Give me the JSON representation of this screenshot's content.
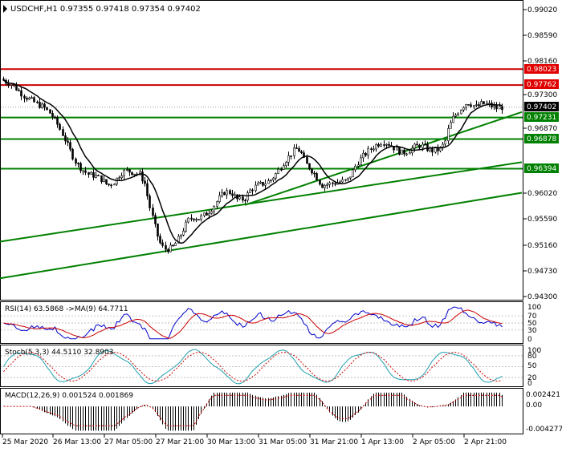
{
  "symbol_header": "USDCHF,H1  0.97355 0.97418 0.97354 0.97402",
  "colors": {
    "candle": "#000000",
    "ma_line": "#000000",
    "support_lines": "#008000",
    "resistance_lines": "#cc0000",
    "price_tag_red_bg": "#e00000",
    "price_tag_green_bg": "#008000",
    "price_tag_current_bg": "#000000",
    "rsi_line": "#0000cc",
    "rsi_ma_line": "#cc0000",
    "stoch_main": "#20a0b0",
    "stoch_signal": "#cc0000",
    "macd_hist": "#000000",
    "macd_signal": "#cc0000"
  },
  "price_axis": {
    "ticks": [
      "0.99020",
      "0.98590",
      "0.98160",
      "0.97300",
      "0.96870",
      "0.96020",
      "0.95590",
      "0.95160",
      "0.94730",
      "0.94300"
    ]
  },
  "price_tags": {
    "r1": "0.98023",
    "r2": "0.97762",
    "current": "0.97402",
    "s1": "0.97231",
    "s2": "0.96878",
    "s3": "0.96394"
  },
  "rsi_panel": {
    "header": "RSI(14) 63.5868  ->MA(9) 64.7711",
    "ticks": [
      "100",
      "70",
      "50",
      "30",
      "0"
    ]
  },
  "stoch_panel": {
    "header": "Stoch(5,3,3) 44.5110 32.8903",
    "ticks": [
      "100",
      "80",
      "50",
      "20",
      "0"
    ]
  },
  "macd_panel": {
    "header": "MACD(12,26,9) 0.001524 0.001869",
    "ticks": [
      "0.002421",
      "0.00",
      "-0.004277"
    ]
  },
  "time_axis": {
    "labels": [
      "25 Mar 2020",
      "26 Mar 13:00",
      "27 Mar 05:00",
      "27 Mar 21:00",
      "30 Mar 13:00",
      "31 Mar 05:00",
      "31 Mar 21:00",
      "1 Apr 13:00",
      "2 Apr 05:00",
      "2 Apr 21:00"
    ]
  },
  "chart_data": {
    "type": "candlestick",
    "symbol": "USDCHF",
    "timeframe": "H1",
    "ylim": [
      0.9425,
      0.9914
    ],
    "price_path": [
      [
        0,
        0.9788
      ],
      [
        6,
        0.9782
      ],
      [
        14,
        0.9778
      ],
      [
        22,
        0.9768
      ],
      [
        30,
        0.9758
      ],
      [
        38,
        0.9752
      ],
      [
        46,
        0.9745
      ],
      [
        54,
        0.974
      ],
      [
        62,
        0.973
      ],
      [
        70,
        0.9715
      ],
      [
        78,
        0.9695
      ],
      [
        86,
        0.9672
      ],
      [
        94,
        0.965
      ],
      [
        102,
        0.9638
      ],
      [
        110,
        0.963
      ],
      [
        118,
        0.9628
      ],
      [
        126,
        0.9622
      ],
      [
        134,
        0.9612
      ],
      [
        142,
        0.9618
      ],
      [
        150,
        0.9632
      ],
      [
        158,
        0.9636
      ],
      [
        166,
        0.9633
      ],
      [
        174,
        0.963
      ],
      [
        180,
        0.9615
      ],
      [
        186,
        0.9578
      ],
      [
        192,
        0.9548
      ],
      [
        198,
        0.952
      ],
      [
        204,
        0.9508
      ],
      [
        210,
        0.9508
      ],
      [
        216,
        0.9512
      ],
      [
        222,
        0.9525
      ],
      [
        228,
        0.954
      ],
      [
        234,
        0.9555
      ],
      [
        240,
        0.956
      ],
      [
        248,
        0.9558
      ],
      [
        256,
        0.9565
      ],
      [
        264,
        0.9575
      ],
      [
        272,
        0.959
      ],
      [
        280,
        0.9602
      ],
      [
        288,
        0.96
      ],
      [
        296,
        0.9588
      ],
      [
        304,
        0.959
      ],
      [
        312,
        0.9605
      ],
      [
        320,
        0.9612
      ],
      [
        328,
        0.9615
      ],
      [
        336,
        0.962
      ],
      [
        344,
        0.9632
      ],
      [
        352,
        0.9648
      ],
      [
        360,
        0.966
      ],
      [
        368,
        0.9672
      ],
      [
        374,
        0.9668
      ],
      [
        380,
        0.9648
      ],
      [
        386,
        0.964
      ],
      [
        392,
        0.963
      ],
      [
        400,
        0.9612
      ],
      [
        408,
        0.9614
      ],
      [
        416,
        0.9616
      ],
      [
        424,
        0.9618
      ],
      [
        432,
        0.962
      ],
      [
        438,
        0.9632
      ],
      [
        444,
        0.9648
      ],
      [
        452,
        0.966
      ],
      [
        460,
        0.967
      ],
      [
        468,
        0.9678
      ],
      [
        476,
        0.9684
      ],
      [
        484,
        0.968
      ],
      [
        492,
        0.9672
      ],
      [
        500,
        0.9665
      ],
      [
        508,
        0.9668
      ],
      [
        516,
        0.9675
      ],
      [
        524,
        0.9678
      ],
      [
        532,
        0.9672
      ],
      [
        540,
        0.9668
      ],
      [
        548,
        0.9672
      ],
      [
        554,
        0.9682
      ],
      [
        558,
        0.9705
      ],
      [
        564,
        0.9722
      ],
      [
        570,
        0.9732
      ],
      [
        576,
        0.9742
      ],
      [
        582,
        0.9748
      ],
      [
        588,
        0.9744
      ],
      [
        594,
        0.974
      ],
      [
        600,
        0.9746
      ],
      [
        606,
        0.9745
      ],
      [
        612,
        0.9742
      ],
      [
        618,
        0.9738
      ],
      [
        624,
        0.974
      ],
      [
        628,
        0.974
      ]
    ],
    "horizontal_levels": [
      {
        "value": 0.98023,
        "kind": "resistance"
      },
      {
        "value": 0.97762,
        "kind": "resistance"
      },
      {
        "value": 0.97231,
        "kind": "support"
      },
      {
        "value": 0.96878,
        "kind": "support"
      },
      {
        "value": 0.96394,
        "kind": "support"
      }
    ],
    "trend_lines": [
      {
        "from": [
          0,
          0.946
        ],
        "to": [
          650,
          0.96
        ]
      },
      {
        "from": [
          0,
          0.952
        ],
        "to": [
          650,
          0.965
        ]
      },
      {
        "from": [
          305,
          0.958
        ],
        "to": [
          650,
          0.9732
        ]
      }
    ],
    "oscillators": {
      "rsi": {
        "ylim": [
          0,
          100
        ],
        "levels": [
          70,
          50,
          30
        ]
      },
      "stochastic": {
        "ylim": [
          0,
          100
        ],
        "levels": [
          80,
          50,
          20
        ]
      },
      "macd": {
        "ylim": [
          -0.004277,
          0.002421
        ]
      }
    }
  }
}
